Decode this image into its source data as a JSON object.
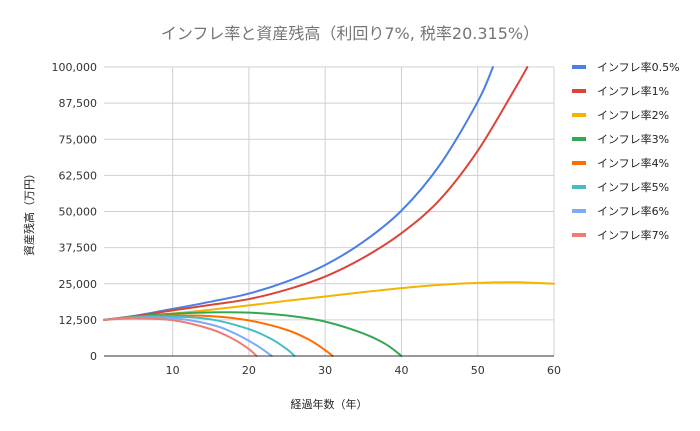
{
  "chart_data": {
    "type": "line",
    "title": "インフレ率と資産残高（利回り7%, 税率20.315%）",
    "xlabel": "経過年数（年）",
    "ylabel": "資産残高（万円）",
    "xlim": [
      1,
      60
    ],
    "ylim": [
      0,
      100000
    ],
    "x_ticks": [
      10,
      20,
      30,
      40,
      50,
      60
    ],
    "x_tick_labels": [
      "10",
      "20",
      "30",
      "40",
      "50",
      "60"
    ],
    "y_ticks": [
      0,
      12500,
      25000,
      37500,
      50000,
      62500,
      75000,
      87500,
      100000
    ],
    "y_tick_labels": [
      "0",
      "12,500",
      "25,000",
      "37,500",
      "50,000",
      "62,500",
      "75,000",
      "87,500",
      "100,000"
    ],
    "legend_position": "right",
    "series": [
      {
        "name": "インフレ率0.5%",
        "color": "#4a7fe3",
        "x": [
          1,
          5,
          10,
          15,
          20,
          25,
          30,
          35,
          40,
          45,
          50,
          52
        ],
        "values": [
          12500,
          13900,
          16300,
          18800,
          21600,
          25800,
          31500,
          39500,
          50300,
          66000,
          88000,
          100000
        ]
      },
      {
        "name": "インフレ率1%",
        "color": "#db4437",
        "x": [
          1,
          5,
          10,
          15,
          20,
          25,
          30,
          35,
          40,
          45,
          50,
          55,
          56.5
        ],
        "values": [
          12500,
          13800,
          15800,
          17700,
          19700,
          23000,
          27500,
          34000,
          42500,
          54000,
          71000,
          93000,
          100000
        ]
      },
      {
        "name": "インフレ率2%",
        "color": "#f4b400",
        "x": [
          1,
          5,
          10,
          15,
          20,
          25,
          30,
          35,
          40,
          45,
          50,
          55,
          60
        ],
        "values": [
          12500,
          13500,
          14700,
          16000,
          17500,
          19100,
          20600,
          22100,
          23500,
          24600,
          25300,
          25500,
          25000
        ]
      },
      {
        "name": "インフレ率3%",
        "color": "#33a852",
        "x": [
          1,
          5,
          10,
          15,
          20,
          25,
          30,
          35,
          38,
          40
        ],
        "values": [
          12500,
          13600,
          14600,
          15100,
          15000,
          14000,
          11900,
          7800,
          4000,
          0
        ]
      },
      {
        "name": "インフレ率4%",
        "color": "#ff6d01",
        "x": [
          1,
          5,
          10,
          15,
          20,
          25,
          28,
          30,
          31
        ],
        "values": [
          12500,
          13500,
          14000,
          13800,
          12300,
          9000,
          5500,
          2000,
          0
        ]
      },
      {
        "name": "インフレ率5%",
        "color": "#46bdc6",
        "x": [
          1,
          5,
          10,
          15,
          20,
          23,
          25,
          26
        ],
        "values": [
          12500,
          13400,
          13600,
          12700,
          9300,
          5800,
          2300,
          0
        ]
      },
      {
        "name": "インフレ率6%",
        "color": "#7baaf7",
        "x": [
          1,
          5,
          10,
          15,
          18,
          21,
          23
        ],
        "values": [
          12500,
          13200,
          13100,
          10900,
          8000,
          3700,
          0
        ]
      },
      {
        "name": "インフレ率7%",
        "color": "#f07b72",
        "x": [
          1,
          5,
          10,
          15,
          18,
          20,
          21
        ],
        "values": [
          12500,
          13000,
          12400,
          9300,
          5800,
          2400,
          0
        ]
      }
    ]
  }
}
